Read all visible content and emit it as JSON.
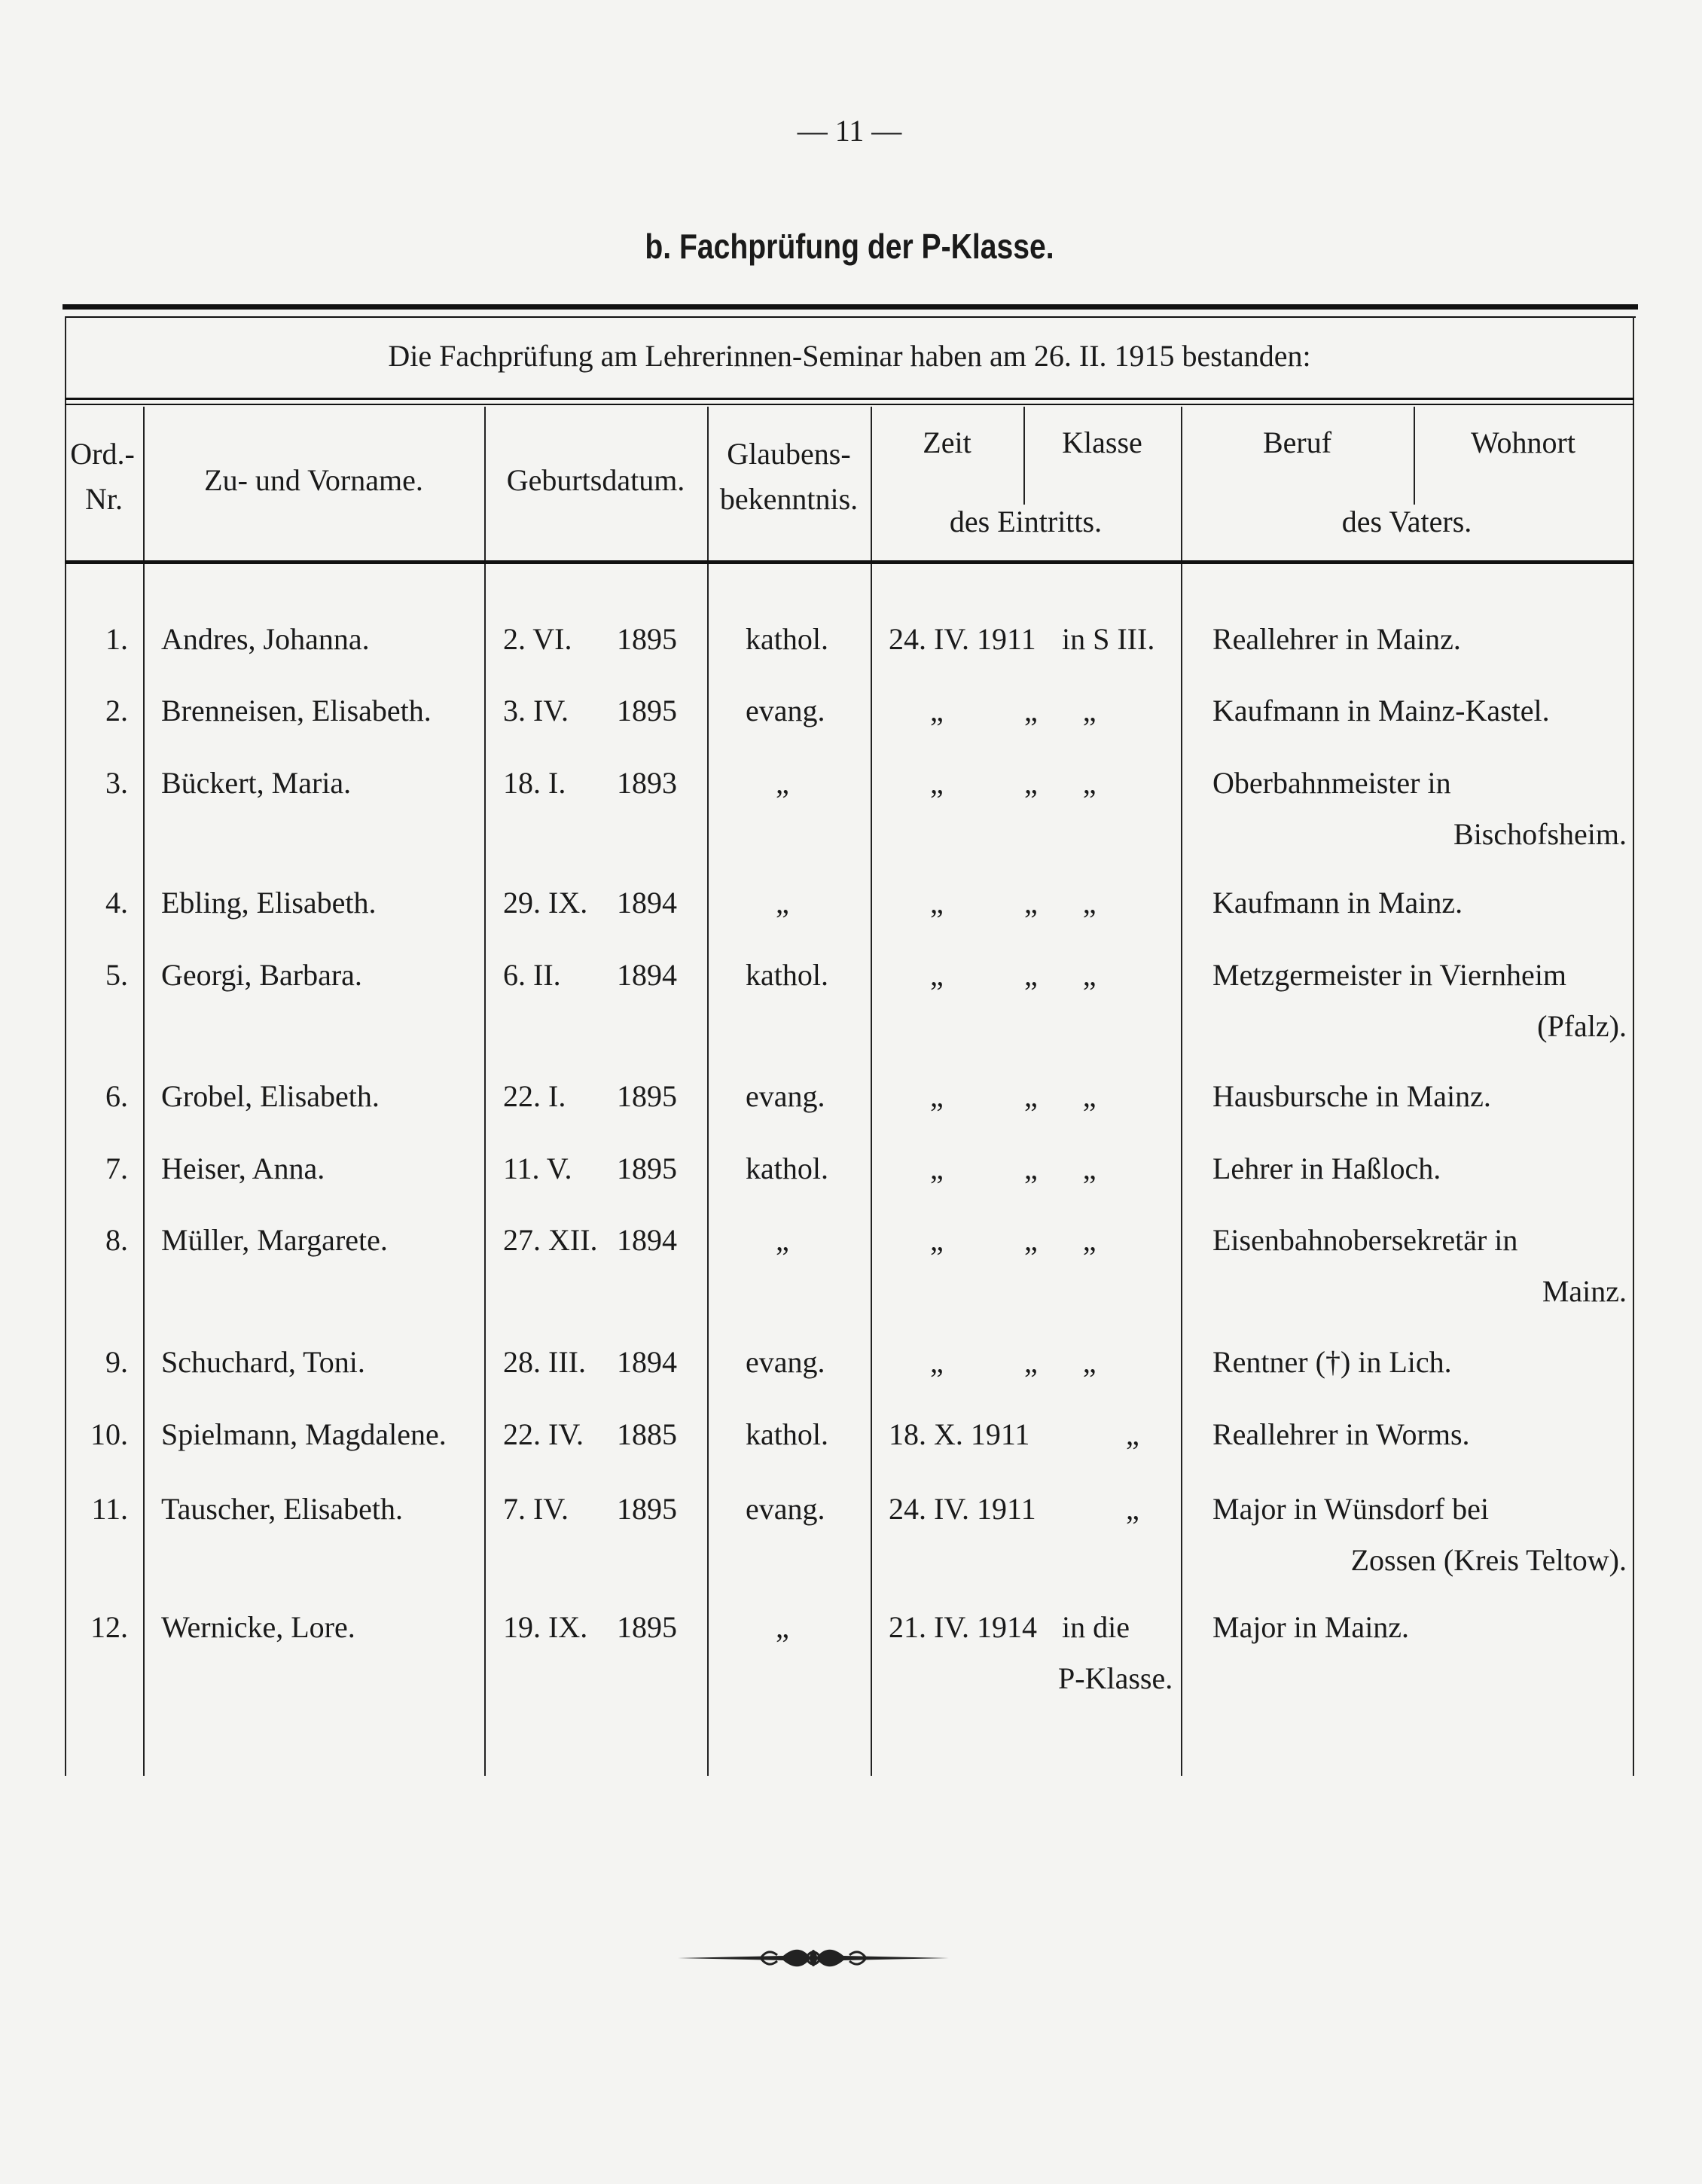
{
  "page_number": "— 11 —",
  "section_title": "b. Fachprüfung der P-Klasse.",
  "intro": "Die Fachprüfung am Lehrerinnen-Seminar haben am 26. II. 1915 bestanden:",
  "headers": {
    "ord_1": "Ord.-",
    "ord_2": "Nr.",
    "name": "Zu- und Vorname.",
    "birth": "Geburtsdatum.",
    "religion_1": "Glaubens-",
    "religion_2": "bekenntnis.",
    "zeit": "Zeit",
    "klasse": "Klasse",
    "eintritt": "des Eintritts.",
    "beruf": "Beruf",
    "wohnort": "Wohnort",
    "vater": "des Vaters."
  },
  "rows": [
    {
      "nr": "1.",
      "name": "Andres, Johanna.",
      "day": "2. VI.",
      "year": "1895",
      "religion": "kathol.",
      "zeit": "24. IV. 1911",
      "klasse": "in S III.",
      "entry_2": "",
      "father": [
        "Reallehrer in Mainz."
      ]
    },
    {
      "nr": "2.",
      "name": "Brenneisen, Elisabeth.",
      "day": "3. IV.",
      "year": "1895",
      "religion": "evang.",
      "zeit": "„",
      "klasse": "„      „",
      "entry_2": "",
      "father": [
        "Kaufmann in Mainz-Kastel."
      ]
    },
    {
      "nr": "3.",
      "name": "Bückert, Maria.",
      "day": "18. I.",
      "year": "1893",
      "religion": "„",
      "zeit": "„",
      "klasse": "„      „",
      "entry_2": "",
      "father": [
        "Oberbahnmeister in",
        "Bischofsheim."
      ]
    },
    {
      "nr": "4.",
      "name": "Ebling, Elisabeth.",
      "day": "29. IX.",
      "year": "1894",
      "religion": "„",
      "zeit": "„",
      "klasse": "„      „",
      "entry_2": "",
      "father": [
        "Kaufmann in Mainz."
      ]
    },
    {
      "nr": "5.",
      "name": "Georgi, Barbara.",
      "day": "6. II.",
      "year": "1894",
      "religion": "kathol.",
      "zeit": "„",
      "klasse": "„      „",
      "entry_2": "",
      "father": [
        "Metzgermeister in Viernheim",
        "(Pfalz)."
      ]
    },
    {
      "nr": "6.",
      "name": "Grobel, Elisabeth.",
      "day": "22. I.",
      "year": "1895",
      "religion": "evang.",
      "zeit": "„",
      "klasse": "„      „",
      "entry_2": "",
      "father": [
        "Hausbursche in Mainz."
      ]
    },
    {
      "nr": "7.",
      "name": "Heiser, Anna.",
      "day": "11. V.",
      "year": "1895",
      "religion": "kathol.",
      "zeit": "„",
      "klasse": "„      „",
      "entry_2": "",
      "father": [
        "Lehrer in Haßloch."
      ]
    },
    {
      "nr": "8.",
      "name": "Müller, Margarete.",
      "day": "27. XII.",
      "year": "1894",
      "religion": "„",
      "zeit": "„",
      "klasse": "„      „",
      "entry_2": "",
      "father": [
        "Eisenbahnobersekretär in",
        "Mainz."
      ]
    },
    {
      "nr": "9.",
      "name": "Schuchard, Toni.",
      "day": "28. III.",
      "year": "1894",
      "religion": "evang.",
      "zeit": "„",
      "klasse": "„      „",
      "entry_2": "",
      "father": [
        "Rentner (†) in Lich."
      ]
    },
    {
      "nr": "10.",
      "name": "Spielmann, Magdalene.",
      "day": "22. IV.",
      "year": "1885",
      "religion": "kathol.",
      "zeit": "18. X. 1911",
      "klasse": "„",
      "entry_2": "",
      "father": [
        "Reallehrer in Worms."
      ]
    },
    {
      "nr": "11.",
      "name": "Tauscher, Elisabeth.",
      "day": "7. IV.",
      "year": "1895",
      "religion": "evang.",
      "zeit": "24. IV. 1911",
      "klasse": "„",
      "entry_2": "",
      "father": [
        "Major in Wünsdorf bei",
        "Zossen (Kreis Teltow)."
      ]
    },
    {
      "nr": "12.",
      "name": "Wernicke, Lore.",
      "day": "19. IX.",
      "year": "1895",
      "religion": "„",
      "zeit": "21. IV. 1914",
      "klasse": "in die",
      "entry_2": "P-Klasse.",
      "father": [
        "Major in Mainz."
      ]
    }
  ],
  "ornament_icon": "decorative-scroll-ornament"
}
